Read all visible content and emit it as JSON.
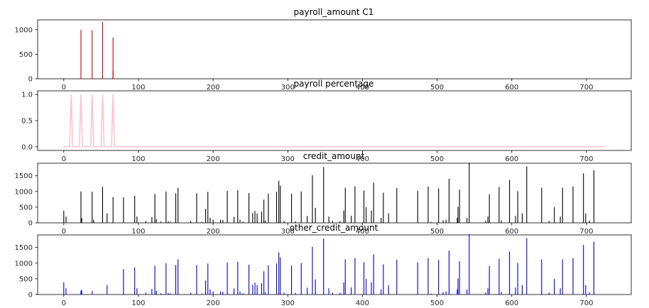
{
  "chart_data": [
    {
      "type": "bar",
      "title": "payroll_amount C1",
      "color": "#cc0000",
      "xlim": [
        -35,
        760
      ],
      "ylim": [
        0,
        1200
      ],
      "xticks": [
        0,
        100,
        200,
        300,
        400,
        500,
        600,
        700
      ],
      "yticks": [
        0,
        500,
        1000
      ],
      "points": [
        [
          23,
          1000
        ],
        [
          38,
          990
        ],
        [
          52,
          1160
        ],
        [
          66,
          840
        ],
        [
          66,
          160
        ]
      ]
    },
    {
      "type": "line",
      "title": "payroll percentage",
      "color": "#ffc0cb",
      "xlim": [
        -35,
        760
      ],
      "ylim": [
        -0.07,
        1.07
      ],
      "xticks": [
        0,
        100,
        200,
        300,
        400,
        500,
        600,
        700
      ],
      "yticks": [
        0.0,
        0.5,
        1.0
      ],
      "ytick_labels": [
        "0.0",
        "0.5",
        "1.0"
      ],
      "x": [
        0,
        8,
        10,
        12,
        21,
        23,
        25,
        36,
        38,
        40,
        50,
        52,
        54,
        64,
        66,
        68,
        725
      ],
      "y": [
        0,
        0,
        1,
        0,
        0,
        1,
        0,
        0,
        1,
        0,
        0,
        1,
        0,
        0,
        1,
        0,
        0
      ]
    },
    {
      "type": "bar",
      "title": "credit_amount",
      "color": "#000000",
      "xlim": [
        -35,
        760
      ],
      "ylim": [
        0,
        1900
      ],
      "xticks": [
        0,
        100,
        200,
        300,
        400,
        500,
        600,
        700
      ],
      "yticks": [
        0,
        500,
        1000,
        1500
      ],
      "points": [
        [
          0,
          390
        ],
        [
          3,
          200
        ],
        [
          23,
          1000
        ],
        [
          24,
          150
        ],
        [
          38,
          990
        ],
        [
          40,
          100
        ],
        [
          52,
          1150
        ],
        [
          58,
          300
        ],
        [
          66,
          820
        ],
        [
          80,
          810
        ],
        [
          95,
          860
        ],
        [
          98,
          200
        ],
        [
          110,
          60
        ],
        [
          118,
          180
        ],
        [
          122,
          920
        ],
        [
          124,
          120
        ],
        [
          130,
          40
        ],
        [
          137,
          1000
        ],
        [
          140,
          50
        ],
        [
          143,
          30
        ],
        [
          150,
          940
        ],
        [
          153,
          1120
        ],
        [
          170,
          60
        ],
        [
          178,
          940
        ],
        [
          185,
          30
        ],
        [
          190,
          450
        ],
        [
          193,
          990
        ],
        [
          196,
          160
        ],
        [
          200,
          100
        ],
        [
          210,
          100
        ],
        [
          213,
          90
        ],
        [
          219,
          1020
        ],
        [
          228,
          190
        ],
        [
          233,
          1040
        ],
        [
          236,
          100
        ],
        [
          240,
          40
        ],
        [
          248,
          950
        ],
        [
          253,
          310
        ],
        [
          256,
          380
        ],
        [
          259,
          300
        ],
        [
          265,
          360
        ],
        [
          268,
          740
        ],
        [
          270,
          70
        ],
        [
          274,
          930
        ],
        [
          285,
          990
        ],
        [
          288,
          1340
        ],
        [
          290,
          1180
        ],
        [
          295,
          60
        ],
        [
          305,
          930
        ],
        [
          310,
          50
        ],
        [
          318,
          1000
        ],
        [
          326,
          220
        ],
        [
          333,
          1520
        ],
        [
          337,
          480
        ],
        [
          348,
          1780
        ],
        [
          355,
          200
        ],
        [
          360,
          60
        ],
        [
          370,
          60
        ],
        [
          375,
          390
        ],
        [
          377,
          1120
        ],
        [
          385,
          230
        ],
        [
          390,
          1160
        ],
        [
          402,
          1030
        ],
        [
          405,
          500
        ],
        [
          412,
          390
        ],
        [
          415,
          1280
        ],
        [
          425,
          160
        ],
        [
          428,
          960
        ],
        [
          435,
          300
        ],
        [
          446,
          1110
        ],
        [
          474,
          1020
        ],
        [
          488,
          1160
        ],
        [
          492,
          30
        ],
        [
          502,
          1100
        ],
        [
          508,
          80
        ],
        [
          512,
          100
        ],
        [
          516,
          1400
        ],
        [
          527,
          160
        ],
        [
          528,
          510
        ],
        [
          530,
          1060
        ],
        [
          540,
          160
        ],
        [
          543,
          1920
        ],
        [
          565,
          60
        ],
        [
          568,
          200
        ],
        [
          570,
          910
        ],
        [
          583,
          1140
        ],
        [
          586,
          80
        ],
        [
          597,
          1370
        ],
        [
          605,
          220
        ],
        [
          608,
          1010
        ],
        [
          614,
          300
        ],
        [
          620,
          1800
        ],
        [
          640,
          1120
        ],
        [
          650,
          60
        ],
        [
          657,
          500
        ],
        [
          665,
          200
        ],
        [
          668,
          1120
        ],
        [
          682,
          1160
        ],
        [
          696,
          1580
        ],
        [
          699,
          300
        ],
        [
          704,
          70
        ],
        [
          710,
          1680
        ]
      ]
    },
    {
      "type": "bar",
      "title": "other_credit_amount",
      "color": "#0000cc",
      "xlim": [
        -35,
        760
      ],
      "ylim": [
        0,
        1900
      ],
      "xticks": [
        0,
        100,
        200,
        300,
        400,
        500,
        600,
        700
      ],
      "yticks": [
        0,
        500,
        1000,
        1500
      ],
      "points": [
        [
          0,
          390
        ],
        [
          3,
          200
        ],
        [
          23,
          120
        ],
        [
          24,
          150
        ],
        [
          38,
          110
        ],
        [
          58,
          300
        ],
        [
          80,
          810
        ],
        [
          95,
          860
        ],
        [
          98,
          200
        ],
        [
          110,
          60
        ],
        [
          118,
          180
        ],
        [
          122,
          920
        ],
        [
          124,
          120
        ],
        [
          130,
          40
        ],
        [
          137,
          1000
        ],
        [
          140,
          50
        ],
        [
          143,
          30
        ],
        [
          150,
          940
        ],
        [
          153,
          1120
        ],
        [
          170,
          60
        ],
        [
          178,
          940
        ],
        [
          185,
          30
        ],
        [
          190,
          450
        ],
        [
          193,
          990
        ],
        [
          196,
          160
        ],
        [
          200,
          100
        ],
        [
          210,
          100
        ],
        [
          213,
          90
        ],
        [
          219,
          1020
        ],
        [
          228,
          190
        ],
        [
          233,
          1040
        ],
        [
          236,
          100
        ],
        [
          240,
          40
        ],
        [
          248,
          950
        ],
        [
          253,
          310
        ],
        [
          256,
          380
        ],
        [
          259,
          300
        ],
        [
          265,
          360
        ],
        [
          268,
          740
        ],
        [
          270,
          70
        ],
        [
          274,
          930
        ],
        [
          285,
          990
        ],
        [
          288,
          1340
        ],
        [
          290,
          1180
        ],
        [
          295,
          60
        ],
        [
          305,
          930
        ],
        [
          310,
          50
        ],
        [
          318,
          1000
        ],
        [
          326,
          220
        ],
        [
          333,
          1520
        ],
        [
          337,
          480
        ],
        [
          348,
          1780
        ],
        [
          355,
          200
        ],
        [
          360,
          60
        ],
        [
          370,
          60
        ],
        [
          375,
          390
        ],
        [
          377,
          1120
        ],
        [
          385,
          230
        ],
        [
          390,
          1160
        ],
        [
          402,
          1030
        ],
        [
          405,
          500
        ],
        [
          412,
          390
        ],
        [
          415,
          1280
        ],
        [
          425,
          160
        ],
        [
          428,
          960
        ],
        [
          435,
          300
        ],
        [
          446,
          1110
        ],
        [
          474,
          1020
        ],
        [
          488,
          1160
        ],
        [
          492,
          30
        ],
        [
          502,
          1100
        ],
        [
          508,
          80
        ],
        [
          512,
          100
        ],
        [
          516,
          1400
        ],
        [
          527,
          160
        ],
        [
          528,
          510
        ],
        [
          530,
          1060
        ],
        [
          540,
          160
        ],
        [
          543,
          1920
        ],
        [
          565,
          60
        ],
        [
          568,
          200
        ],
        [
          570,
          910
        ],
        [
          583,
          1140
        ],
        [
          586,
          80
        ],
        [
          597,
          1370
        ],
        [
          605,
          220
        ],
        [
          608,
          1010
        ],
        [
          614,
          300
        ],
        [
          620,
          1800
        ],
        [
          640,
          1120
        ],
        [
          650,
          60
        ],
        [
          657,
          500
        ],
        [
          665,
          200
        ],
        [
          668,
          1120
        ],
        [
          682,
          1160
        ],
        [
          696,
          1580
        ],
        [
          699,
          300
        ],
        [
          704,
          70
        ],
        [
          710,
          1680
        ]
      ]
    }
  ]
}
